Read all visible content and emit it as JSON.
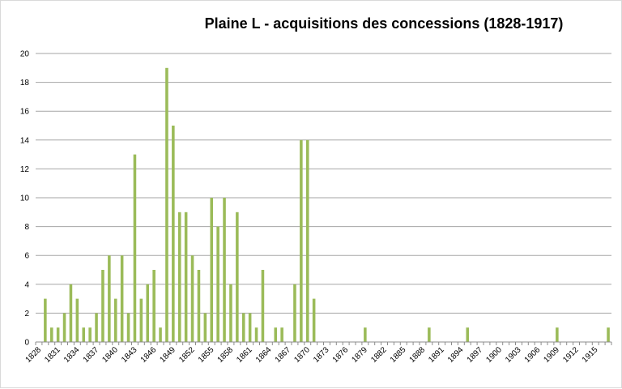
{
  "chart_data": {
    "type": "bar",
    "title": "Plaine L - acquisitions des concessions (1828-1917)",
    "xlabel": "",
    "ylabel": "",
    "ylim": [
      0,
      20
    ],
    "yticks": [
      0,
      2,
      4,
      6,
      8,
      10,
      12,
      14,
      16,
      18,
      20
    ],
    "grid": true,
    "legend": "none",
    "bar_color": "#9bbb59",
    "grid_color": "#a6a6a6",
    "categories": [
      "1828",
      "1829",
      "1830",
      "1831",
      "1832",
      "1833",
      "1834",
      "1835",
      "1836",
      "1837",
      "1838",
      "1839",
      "1840",
      "1841",
      "1842",
      "1843",
      "1844",
      "1845",
      "1846",
      "1847",
      "1848",
      "1849",
      "1850",
      "1851",
      "1852",
      "1853",
      "1854",
      "1855",
      "1856",
      "1857",
      "1858",
      "1859",
      "1860",
      "1861",
      "1862",
      "1863",
      "1864",
      "1865",
      "1866",
      "1867",
      "1868",
      "1869",
      "1870",
      "1871",
      "1872",
      "1873",
      "1874",
      "1875",
      "1876",
      "1877",
      "1878",
      "1879",
      "1880",
      "1881",
      "1882",
      "1883",
      "1884",
      "1885",
      "1886",
      "1887",
      "1888",
      "1889",
      "1890",
      "1891",
      "1892",
      "1893",
      "1894",
      "1895",
      "1896",
      "1897",
      "1898",
      "1899",
      "1900",
      "1901",
      "1902",
      "1903",
      "1904",
      "1905",
      "1906",
      "1907",
      "1908",
      "1909",
      "1910",
      "1911",
      "1912",
      "1913",
      "1914",
      "1915",
      "1916",
      "1917"
    ],
    "tick_labels": [
      "1828",
      "1831",
      "1834",
      "1837",
      "1840",
      "1843",
      "1846",
      "1849",
      "1852",
      "1855",
      "1858",
      "1861",
      "1864",
      "1867",
      "1870",
      "1873",
      "1876",
      "1879",
      "1882",
      "1885",
      "1888",
      "1891",
      "1894",
      "1897",
      "1900",
      "1903",
      "1906",
      "1909",
      "1912",
      "1915"
    ],
    "values": [
      0,
      3,
      1,
      1,
      2,
      4,
      3,
      1,
      1,
      2,
      5,
      6,
      3,
      6,
      2,
      13,
      3,
      4,
      5,
      1,
      19,
      15,
      9,
      9,
      6,
      5,
      2,
      10,
      8,
      10,
      4,
      9,
      2,
      2,
      1,
      5,
      0,
      1,
      1,
      0,
      4,
      14,
      14,
      3,
      0,
      0,
      0,
      0,
      0,
      0,
      0,
      1,
      0,
      0,
      0,
      0,
      0,
      0,
      0,
      0,
      0,
      1,
      0,
      0,
      0,
      0,
      0,
      1,
      0,
      0,
      0,
      0,
      0,
      0,
      0,
      0,
      0,
      0,
      0,
      0,
      0,
      1,
      0,
      0,
      0,
      0,
      0,
      0,
      0,
      1
    ]
  }
}
